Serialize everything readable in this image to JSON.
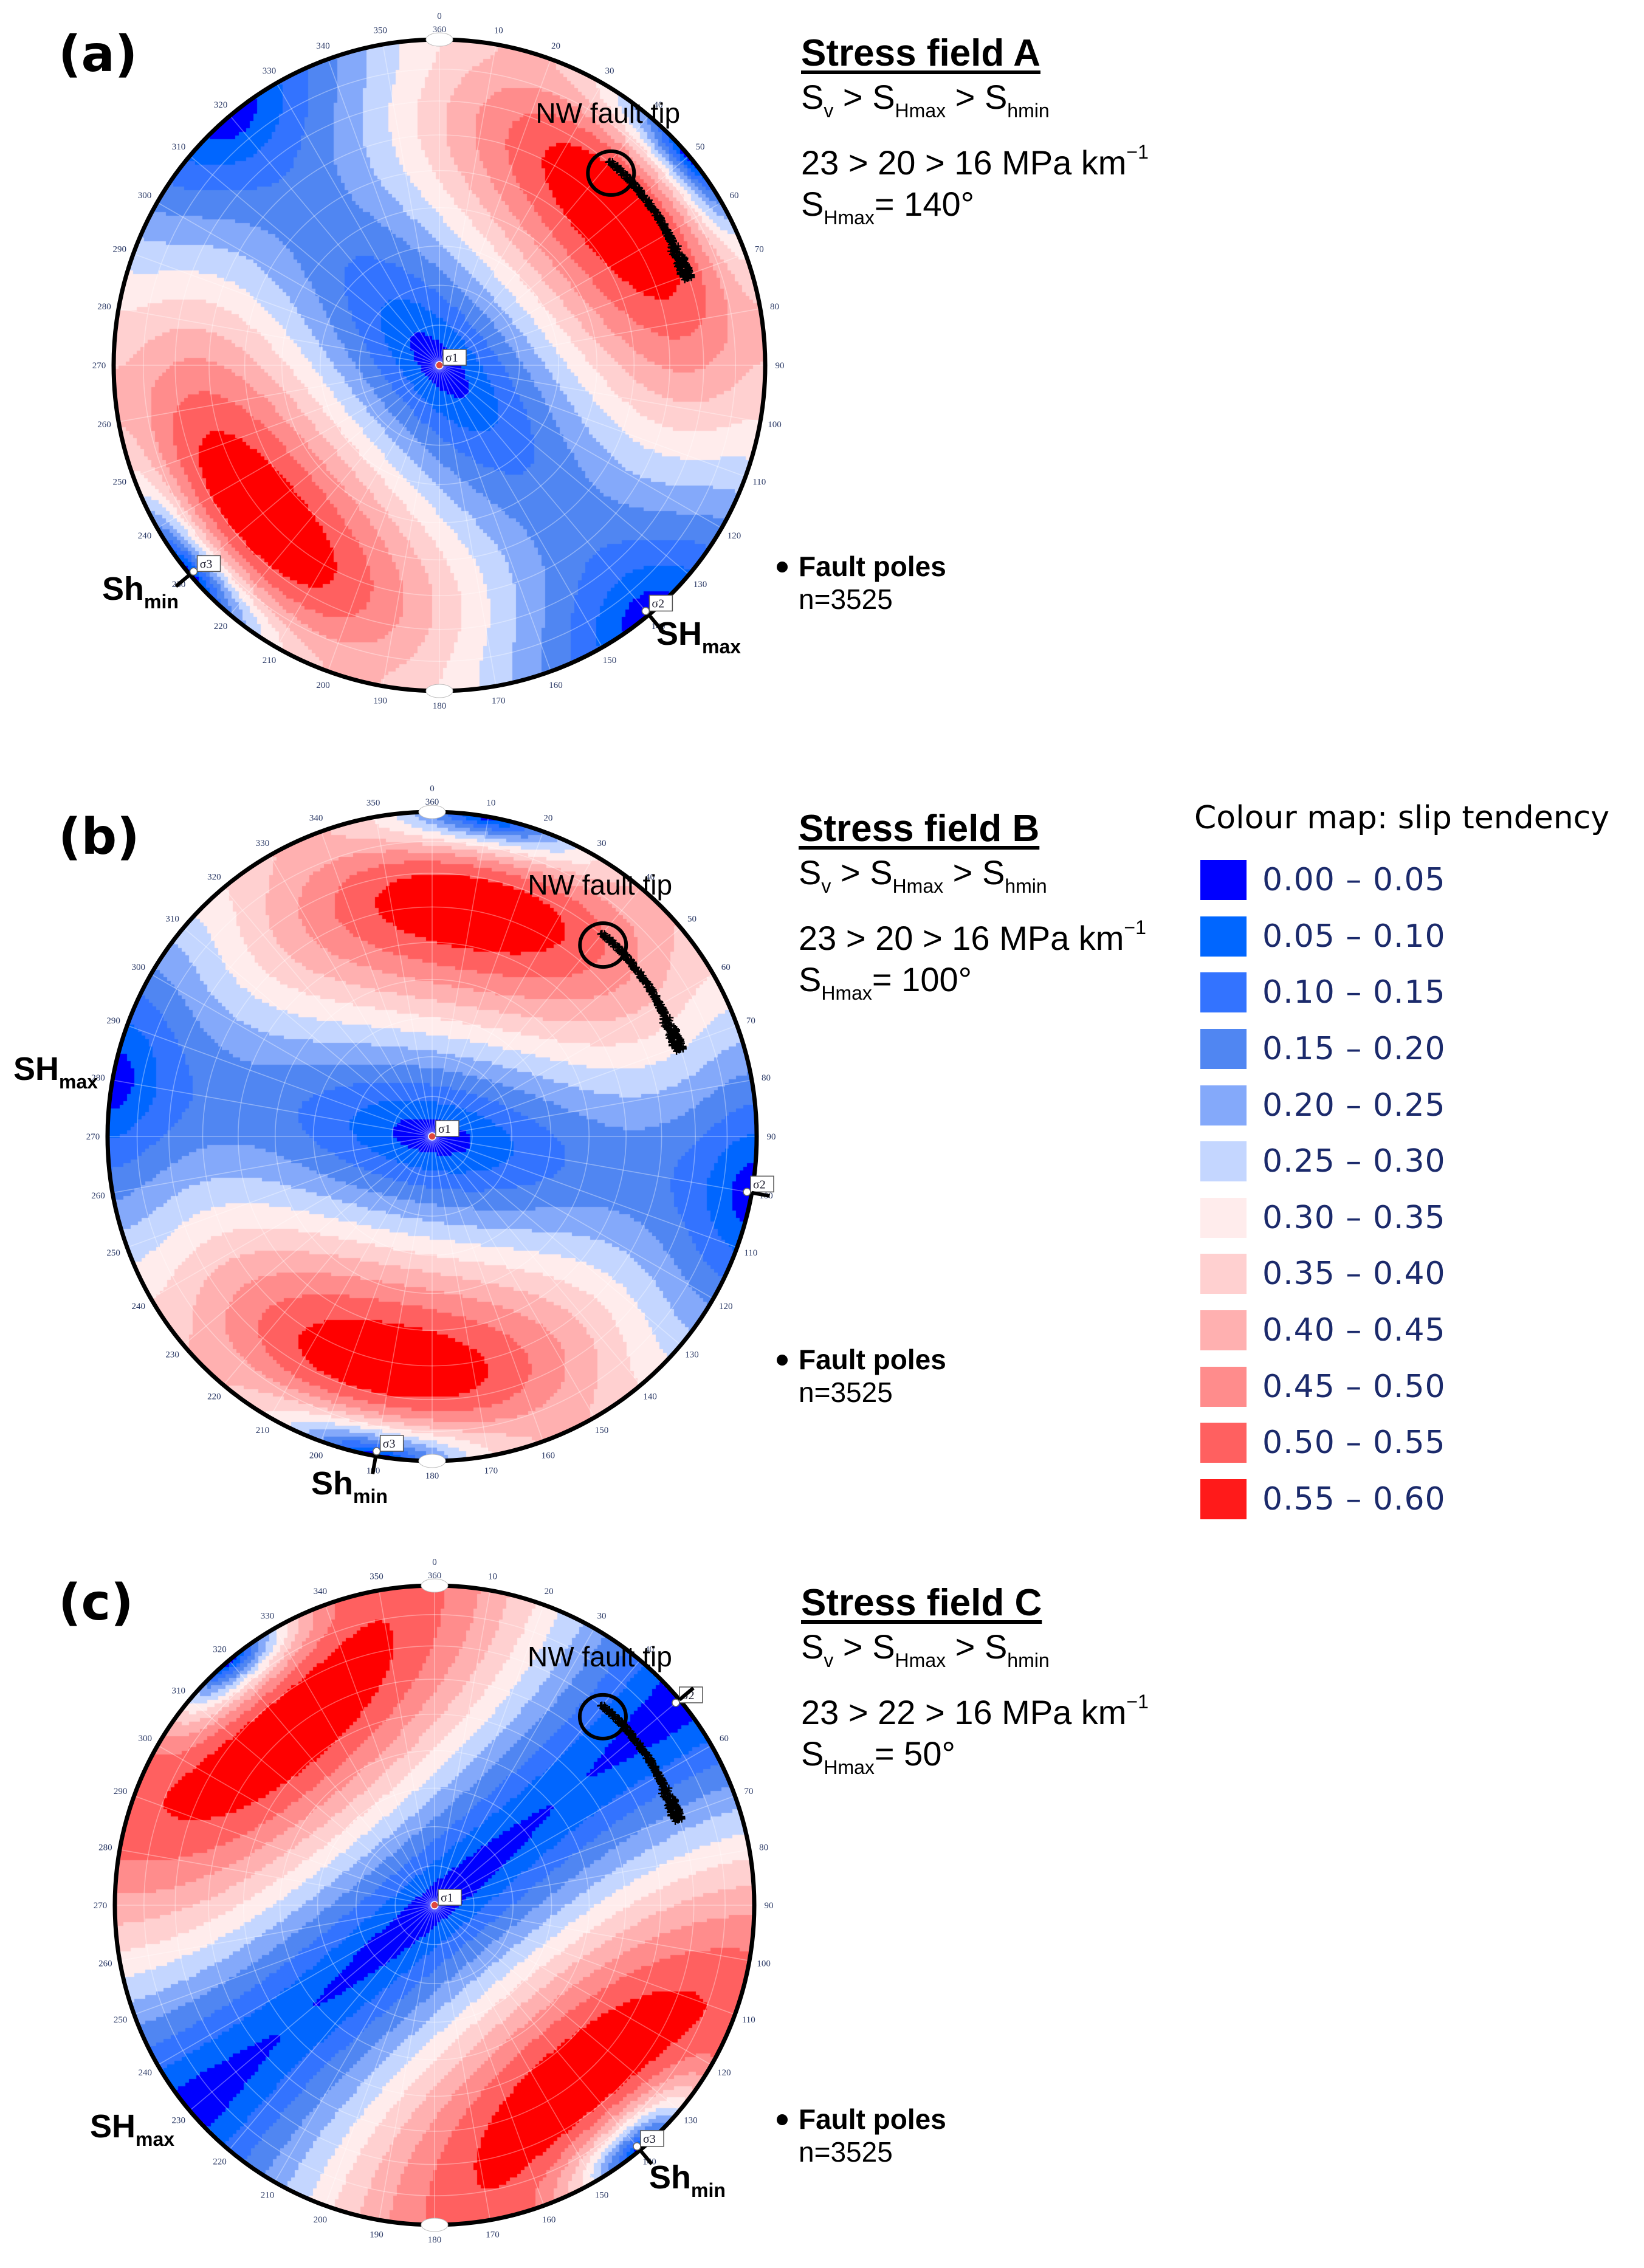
{
  "figure": {
    "panels": [
      {
        "id": "a",
        "panel_label": "(a)",
        "title": "Stress field A",
        "relation": {
          "s1": "S",
          "s1_sub": "v",
          "s2": "S",
          "s2_sub": "Hmax",
          "s3": "S",
          "s3_sub": "hmin",
          "gt": ">"
        },
        "gradients_text": "23 > 20 > 16 MPa km",
        "gradients_exp": "−1",
        "shmax_label": "S",
        "shmax_sub": "Hmax",
        "shmax_value_text": "= 140°",
        "fault_poles_title": "Fault poles",
        "fault_poles_count": "n=3525",
        "fault_tip_label": "NW fault tip",
        "shmax_marker": {
          "text": "SH",
          "sub": "max"
        },
        "shmin_marker": {
          "text": "Sh",
          "sub": "min"
        }
      },
      {
        "id": "b",
        "panel_label": "(b)",
        "title": "Stress field B",
        "relation": {
          "s1": "S",
          "s1_sub": "v",
          "s2": "S",
          "s2_sub": "Hmax",
          "s3": "S",
          "s3_sub": "hmin",
          "gt": ">"
        },
        "gradients_text": "23 > 20 > 16 MPa km",
        "gradients_exp": "−1",
        "shmax_label": "S",
        "shmax_sub": "Hmax",
        "shmax_value_text": "= 100°",
        "fault_poles_title": "Fault poles",
        "fault_poles_count": "n=3525",
        "fault_tip_label": "NW fault tip",
        "shmax_marker": {
          "text": "SH",
          "sub": "max"
        },
        "shmin_marker": {
          "text": "Sh",
          "sub": "min"
        }
      },
      {
        "id": "c",
        "panel_label": "(c)",
        "title": "Stress field C",
        "relation": {
          "s1": "S",
          "s1_sub": "v",
          "s2": "S",
          "s2_sub": "Hmax",
          "s3": "S",
          "s3_sub": "hmin",
          "gt": ">"
        },
        "gradients_text": "23 > 22 > 16 MPa km",
        "gradients_exp": "−1",
        "shmax_label": "S",
        "shmax_sub": "Hmax",
        "shmax_value_text": "= 50°",
        "fault_poles_title": "Fault poles",
        "fault_poles_count": "n=3525",
        "fault_tip_label": "NW fault tip",
        "shmax_marker": {
          "text": "SH",
          "sub": "max"
        },
        "shmin_marker": {
          "text": "Sh",
          "sub": "min"
        }
      }
    ],
    "legend": {
      "title": "Colour map: slip tendency",
      "bins": [
        {
          "label": "0.00 – 0.05",
          "color": "#0000ff"
        },
        {
          "label": "0.05 – 0.10",
          "color": "#0066ff"
        },
        {
          "label": "0.10 – 0.15",
          "color": "#3373ff"
        },
        {
          "label": "0.15 – 0.20",
          "color": "#5086f2"
        },
        {
          "label": "0.20 – 0.25",
          "color": "#84a9fa"
        },
        {
          "label": "0.25 – 0.30",
          "color": "#c4d6ff"
        },
        {
          "label": "0.30 – 0.35",
          "color": "#ffecec"
        },
        {
          "label": "0.35 – 0.40",
          "color": "#ffd0d0"
        },
        {
          "label": "0.40 – 0.45",
          "color": "#ffb0b0"
        },
        {
          "label": "0.45 – 0.50",
          "color": "#ff8c8c"
        },
        {
          "label": "0.50 – 0.55",
          "color": "#ff6060"
        },
        {
          "label": "0.55 – 0.60",
          "color": "#ff1a1a"
        }
      ]
    }
  },
  "chart_data": [
    {
      "type": "heatmap",
      "subtype": "stereonet",
      "title": "Stress field A",
      "value_name": "slip tendency",
      "color_bins": [
        0.0,
        0.05,
        0.1,
        0.15,
        0.2,
        0.25,
        0.3,
        0.35,
        0.4,
        0.45,
        0.5,
        0.55,
        0.6
      ],
      "stress_gradients_MPa_per_km": {
        "Sv": 23,
        "SHmax": 20,
        "Shmin": 16
      },
      "shmax_azimuth_deg": 140,
      "principal_axes": [
        {
          "name": "σ1",
          "trend": 0,
          "plunge": 90
        },
        {
          "name": "σ2",
          "trend": 140,
          "plunge": 0
        },
        {
          "name": "σ3",
          "trend": 230,
          "plunge": 0
        }
      ],
      "tick_labels": [
        "0",
        "360",
        "10",
        "20",
        "30",
        "40",
        "50",
        "60",
        "70",
        "80",
        "90",
        "100",
        "110",
        "120",
        "130",
        "140",
        "150",
        "160",
        "170",
        "180",
        "190",
        "200",
        "210",
        "220",
        "230",
        "240",
        "250",
        "260",
        "270",
        "280",
        "290",
        "300",
        "310",
        "320",
        "330",
        "340",
        "350"
      ],
      "fault_poles": {
        "n": 3525,
        "trend_range_deg": [
          40,
          71
        ],
        "plunge_approx_deg": 20
      },
      "annotation": "NW fault tip"
    },
    {
      "type": "heatmap",
      "subtype": "stereonet",
      "title": "Stress field B",
      "value_name": "slip tendency",
      "color_bins": [
        0.0,
        0.05,
        0.1,
        0.15,
        0.2,
        0.25,
        0.3,
        0.35,
        0.4,
        0.45,
        0.5,
        0.55,
        0.6
      ],
      "stress_gradients_MPa_per_km": {
        "Sv": 23,
        "SHmax": 20,
        "Shmin": 16
      },
      "shmax_azimuth_deg": 100,
      "principal_axes": [
        {
          "name": "σ1",
          "trend": 0,
          "plunge": 90
        },
        {
          "name": "σ2",
          "trend": 100,
          "plunge": 0
        },
        {
          "name": "σ3",
          "trend": 190,
          "plunge": 0
        }
      ],
      "tick_labels": [
        "0",
        "360",
        "10",
        "20",
        "30",
        "40",
        "50",
        "60",
        "70",
        "80",
        "90",
        "100",
        "110",
        "120",
        "130",
        "140",
        "150",
        "160",
        "170",
        "180",
        "190",
        "200",
        "210",
        "220",
        "230",
        "240",
        "250",
        "260",
        "270",
        "280",
        "290",
        "300",
        "310",
        "320",
        "330",
        "340",
        "350"
      ],
      "fault_poles": {
        "n": 3525,
        "trend_range_deg": [
          40,
          71
        ],
        "plunge_approx_deg": 20
      },
      "annotation": "NW fault tip"
    },
    {
      "type": "heatmap",
      "subtype": "stereonet",
      "title": "Stress field C",
      "value_name": "slip tendency",
      "color_bins": [
        0.0,
        0.05,
        0.1,
        0.15,
        0.2,
        0.25,
        0.3,
        0.35,
        0.4,
        0.45,
        0.5,
        0.55,
        0.6
      ],
      "stress_gradients_MPa_per_km": {
        "Sv": 23,
        "SHmax": 22,
        "Shmin": 16
      },
      "shmax_azimuth_deg": 50,
      "principal_axes": [
        {
          "name": "σ1",
          "trend": 0,
          "plunge": 90
        },
        {
          "name": "σ2",
          "trend": 50,
          "plunge": 0
        },
        {
          "name": "σ3",
          "trend": 140,
          "plunge": 0
        }
      ],
      "tick_labels": [
        "0",
        "360",
        "10",
        "20",
        "30",
        "40",
        "50",
        "60",
        "70",
        "80",
        "90",
        "100",
        "110",
        "120",
        "130",
        "140",
        "150",
        "160",
        "170",
        "180",
        "190",
        "200",
        "210",
        "220",
        "230",
        "240",
        "250",
        "260",
        "270",
        "280",
        "290",
        "300",
        "310",
        "320",
        "330",
        "340",
        "350"
      ],
      "fault_poles": {
        "n": 3525,
        "trend_range_deg": [
          40,
          71
        ],
        "plunge_approx_deg": 20
      },
      "annotation": "NW fault tip"
    }
  ]
}
